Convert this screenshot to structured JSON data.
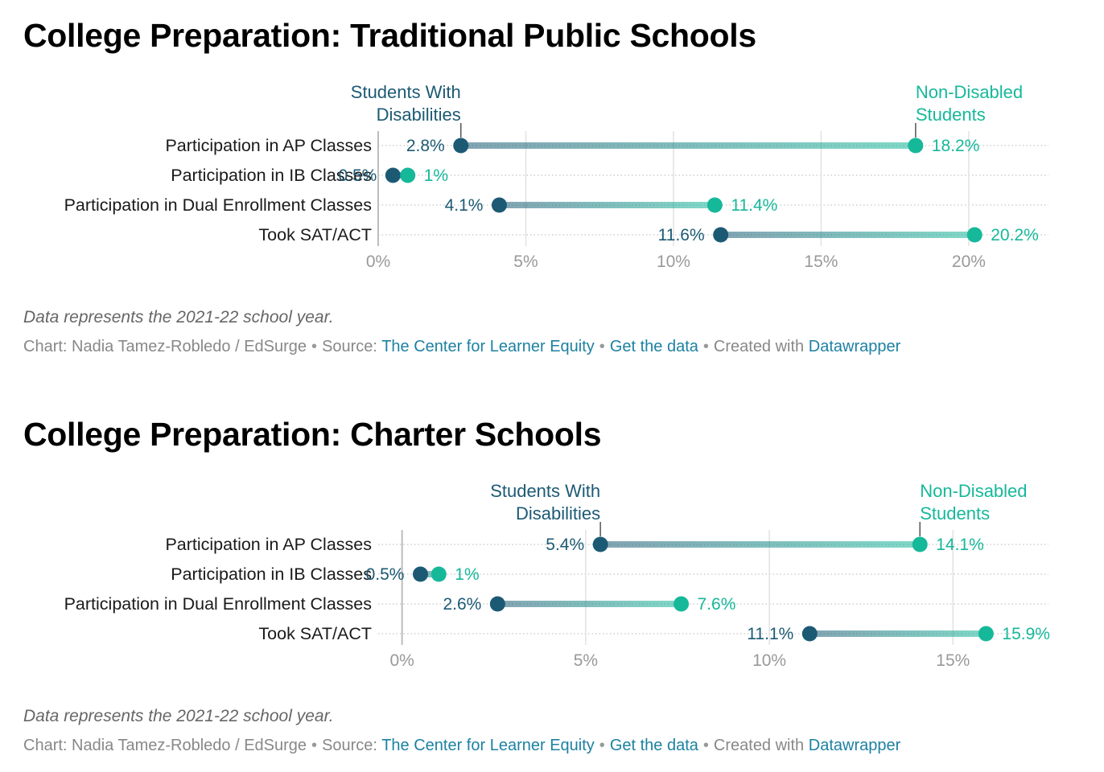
{
  "colors": {
    "disabled": "#1c5a74",
    "non_disabled": "#16b89a",
    "link": "#1d81a2",
    "footer": "#888888",
    "tick": "#999999"
  },
  "chart_data": [
    {
      "type": "dot-range",
      "title": "College Preparation: Traditional Public Schools",
      "categories": [
        "Participation in AP Classes",
        "Participation in IB Classes",
        "Participation in Dual Enrollment Classes",
        "Took SAT/ACT"
      ],
      "series": [
        {
          "name": "Students With Disabilities",
          "values": [
            2.8,
            0.5,
            4.1,
            11.6
          ],
          "labels": [
            "2.8%",
            "0.5%",
            "4.1%",
            "11.6%"
          ]
        },
        {
          "name": "Non-Disabled Students",
          "values": [
            18.2,
            1,
            11.4,
            20.2
          ],
          "labels": [
            "18.2%",
            "1%",
            "11.4%",
            "20.2%"
          ]
        }
      ],
      "legend_lines": {
        "disabled": [
          "Students With",
          "Disabilities"
        ],
        "non_disabled": [
          "Non-Disabled",
          "Students"
        ]
      },
      "xlim": [
        0,
        22.7
      ],
      "xticks": [
        0,
        5,
        10,
        15,
        20
      ],
      "xtick_labels": [
        "0%",
        "5%",
        "10%",
        "15%",
        "20%"
      ],
      "grid": true,
      "note": "Data represents the 2021-22 school year.",
      "footer": {
        "chart_prefix": "Chart: Nadia Tamez-Robledo / EdSurge",
        "source_prefix": "Source:",
        "source_link": "The Center for Learner Equity",
        "data_link": "Get the data",
        "created_prefix": "Created with",
        "tool_link": "Datawrapper"
      }
    },
    {
      "type": "dot-range",
      "title": "College Preparation: Charter Schools",
      "categories": [
        "Participation in AP Classes",
        "Participation in IB Classes",
        "Participation in Dual Enrollment Classes",
        "Took SAT/ACT"
      ],
      "series": [
        {
          "name": "Students With Disabilities",
          "values": [
            5.4,
            0.5,
            2.6,
            11.1
          ],
          "labels": [
            "5.4%",
            "0.5%",
            "2.6%",
            "11.1%"
          ]
        },
        {
          "name": "Non-Disabled Students",
          "values": [
            14.1,
            1,
            7.6,
            15.9
          ],
          "labels": [
            "14.1%",
            "1%",
            "7.6%",
            "15.9%"
          ]
        }
      ],
      "legend_lines": {
        "disabled": [
          "Students With",
          "Disabilities"
        ],
        "non_disabled": [
          "Non-Disabled",
          "Students"
        ]
      },
      "xlim": [
        -0.65,
        17.6
      ],
      "xticks": [
        0,
        5,
        10,
        15
      ],
      "xtick_labels": [
        "0%",
        "5%",
        "10%",
        "15%"
      ],
      "grid": true,
      "note": "Data represents the 2021-22 school year.",
      "footer": {
        "chart_prefix": "Chart: Nadia Tamez-Robledo / EdSurge",
        "source_prefix": "Source:",
        "source_link": "The Center for Learner Equity",
        "data_link": "Get the data",
        "created_prefix": "Created with",
        "tool_link": "Datawrapper"
      }
    }
  ]
}
